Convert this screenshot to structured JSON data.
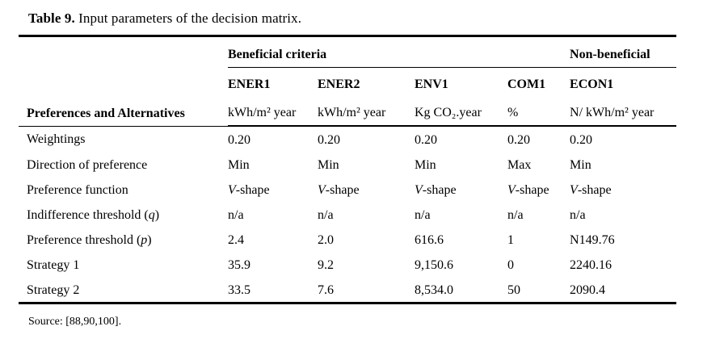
{
  "caption": {
    "label": "Table 9.",
    "text": " Input parameters of the decision matrix."
  },
  "table": {
    "corner_header": "Preferences and Alternatives",
    "group_headers": {
      "beneficial": "Beneficial criteria",
      "non_beneficial": "Non-beneficial"
    },
    "columns": [
      {
        "name": "ENER1",
        "unit": "kWh/m² year"
      },
      {
        "name": "ENER2",
        "unit": "kWh/m² year"
      },
      {
        "name": "ENV1",
        "unit": "Kg CO₂.year"
      },
      {
        "name": "COM1",
        "unit": "%"
      },
      {
        "name": "ECON1",
        "unit": "N/ kWh/m² year"
      }
    ],
    "rows": [
      {
        "label": "Weightings",
        "values": [
          "0.20",
          "0.20",
          "0.20",
          "0.20",
          "0.20"
        ]
      },
      {
        "label": "Direction of preference",
        "values": [
          "Min",
          "Min",
          "Min",
          "Max",
          "Min"
        ]
      },
      {
        "label": "Preference function",
        "values": [
          "V-shape",
          "V-shape",
          "V-shape",
          "V-shape",
          "V-shape"
        ]
      },
      {
        "label": "Indifference threshold (",
        "label_var": "q",
        "label_end": ")",
        "values": [
          "n/a",
          "n/a",
          "n/a",
          "n/a",
          "n/a"
        ]
      },
      {
        "label": "Preference threshold (",
        "label_var": "p",
        "label_end": ")",
        "values": [
          "2.4",
          "2.0",
          "616.6",
          "1",
          "N149.76"
        ]
      },
      {
        "label": "Strategy 1",
        "values": [
          "35.9",
          "9.2",
          "9,150.6",
          "0",
          "2240.16"
        ]
      },
      {
        "label": "Strategy 2",
        "values": [
          "33.5",
          "7.6",
          "8,534.0",
          "50",
          "2090.4"
        ]
      }
    ]
  },
  "source_note": "Source: [88,90,100]."
}
